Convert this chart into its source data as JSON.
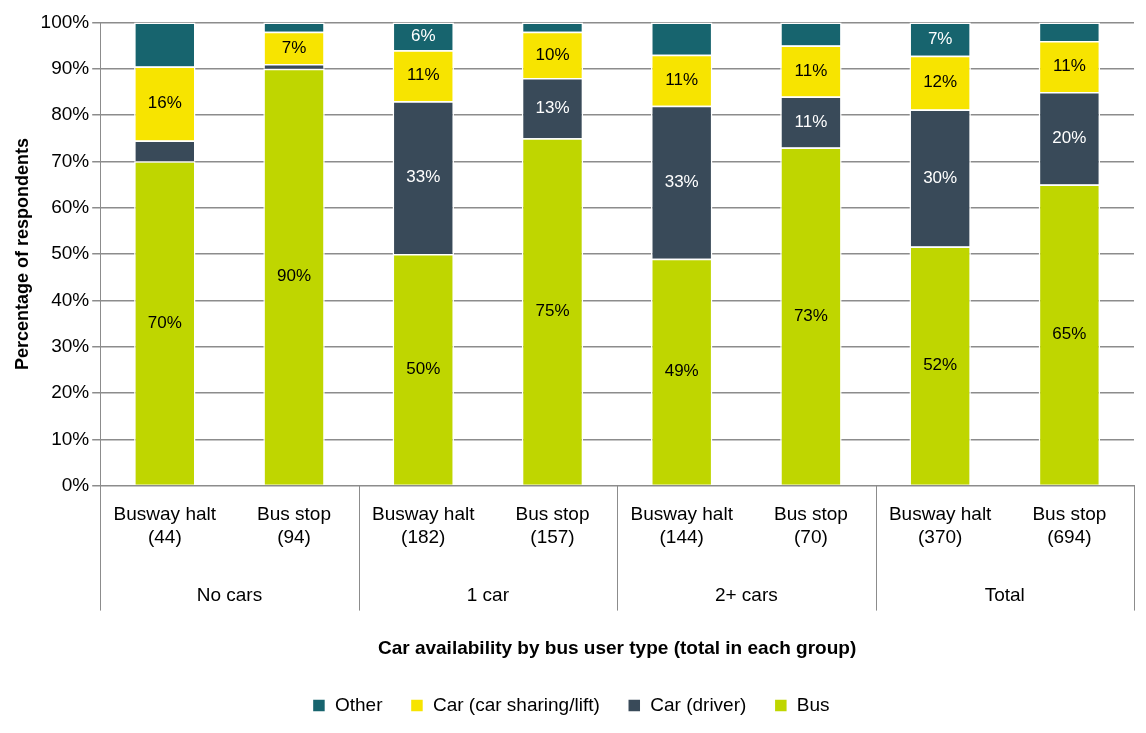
{
  "chart_data": {
    "type": "bar",
    "stacked": true,
    "categories": [
      "Busway halt (44)",
      "Bus stop (94)",
      "Busway halt (182)",
      "Bus stop (157)",
      "Busway halt (144)",
      "Bus stop (70)",
      "Busway halt (370)",
      "Bus stop (694)"
    ],
    "annotations": [
      "No cars",
      "1 car",
      "2+ cars",
      "Total"
    ],
    "xlabel": "Car availability by bus user type (total in each group)",
    "ylabel": "Percentage of respondents",
    "ylim": [
      0,
      100
    ],
    "yticks": [
      {
        "value": 0,
        "label": "0%"
      },
      {
        "value": 10,
        "label": "10%"
      },
      {
        "value": 20,
        "label": "20%"
      },
      {
        "value": 30,
        "label": "30%"
      },
      {
        "value": 40,
        "label": "40%"
      },
      {
        "value": 50,
        "label": "50%"
      },
      {
        "value": 60,
        "label": "60%"
      },
      {
        "value": 70,
        "label": "70%"
      },
      {
        "value": 80,
        "label": "80%"
      },
      {
        "value": 90,
        "label": "90%"
      },
      {
        "value": 100,
        "label": "100%"
      }
    ],
    "grid": "y",
    "legend": "bottom",
    "series": [
      {
        "name": "Bus",
        "color": "#bfd600",
        "values": [
          70,
          90,
          50,
          75,
          49,
          73,
          51.6,
          65
        ],
        "value_labels": [
          "70%",
          "90%",
          "50%",
          "75%",
          "49%",
          "73%",
          "52%",
          "65%"
        ]
      },
      {
        "name": "Car (driver)",
        "color": "#394a59",
        "values": [
          4.5,
          1,
          33,
          13,
          33,
          11,
          29.6,
          20
        ],
        "value_labels": [
          null,
          null,
          "33%",
          "13%",
          "33%",
          "11%",
          "30%",
          "20%"
        ]
      },
      {
        "name": "Car (car sharing/lift)",
        "color": "#f7e400",
        "values": [
          16,
          7,
          11,
          10,
          11,
          11,
          11.6,
          11
        ],
        "value_labels": [
          "16%",
          "7%",
          "11%",
          "10%",
          "11%",
          "11%",
          "12%",
          "11%"
        ]
      },
      {
        "name": "Other",
        "color": "#17646e",
        "values": [
          9.5,
          2,
          6,
          2,
          7,
          5,
          7.2,
          4
        ],
        "value_labels": [
          null,
          null,
          "6%",
          null,
          null,
          null,
          "7%",
          null
        ]
      }
    ]
  }
}
